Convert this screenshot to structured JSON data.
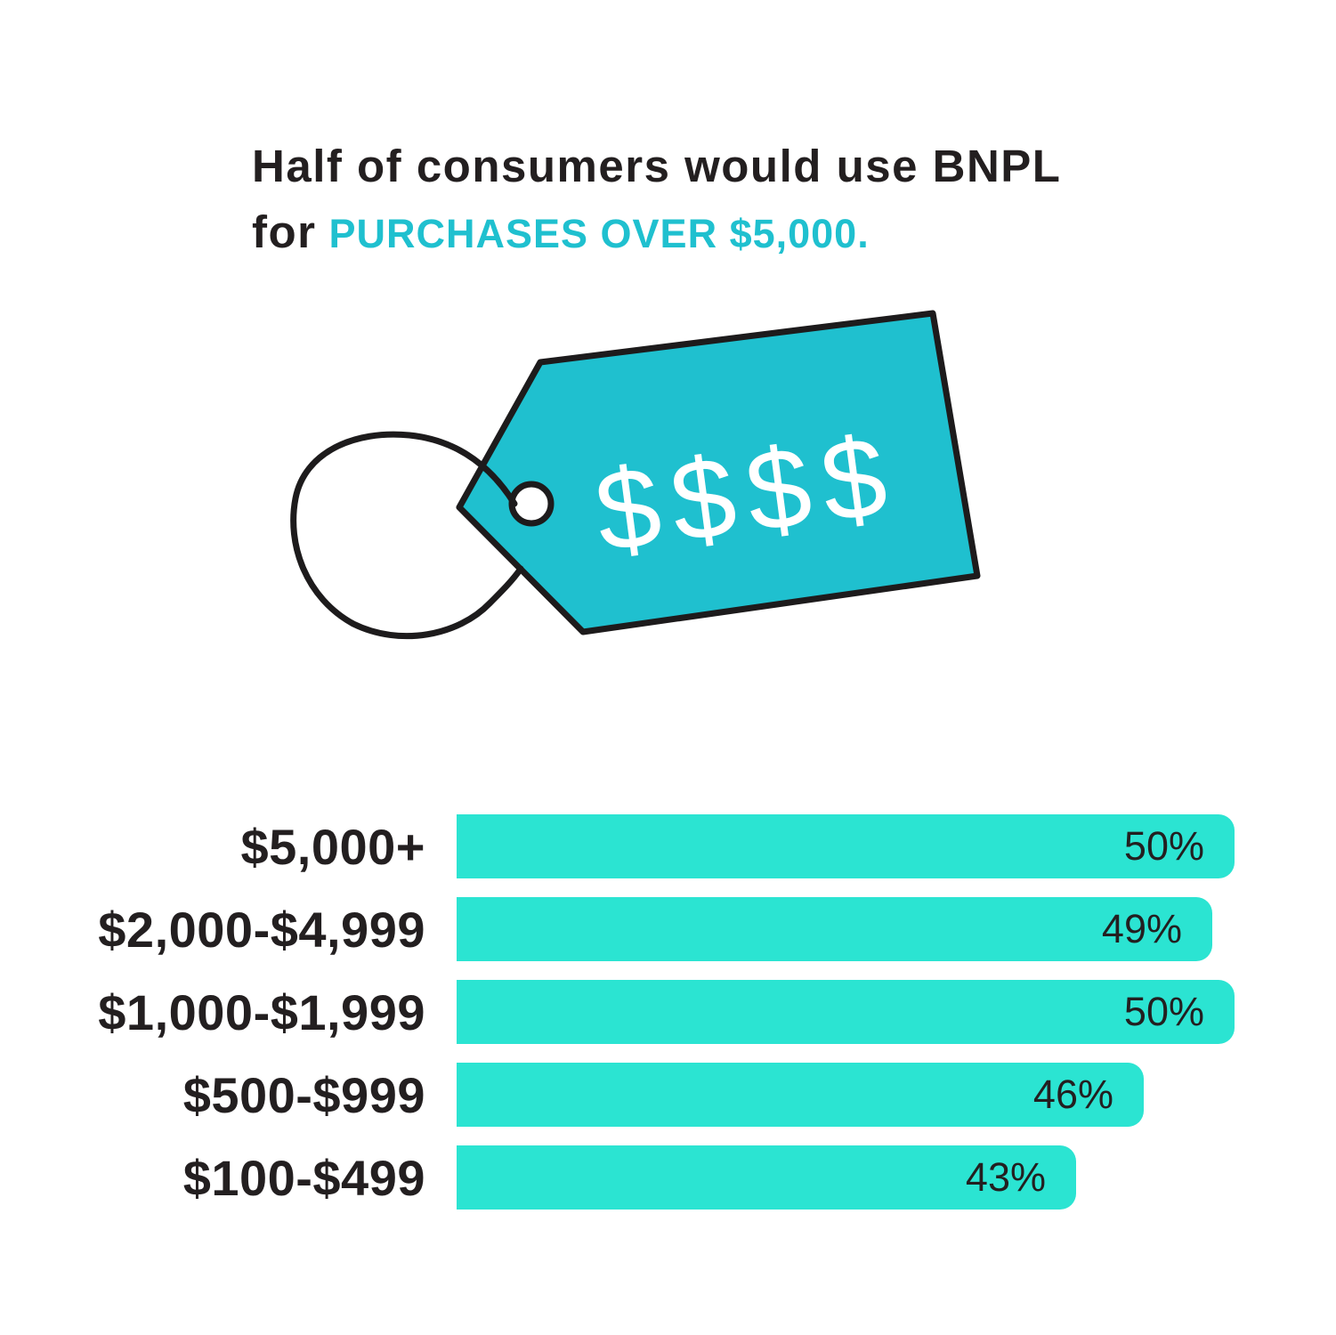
{
  "page": {
    "background": "#ffffff",
    "text_color": "#231F20",
    "accent_teal": "#1FC0CF",
    "bar_teal": "#2BE4D2"
  },
  "title": {
    "line1": "Half of consumers would use BNPL",
    "line2_prefix": "for",
    "line2_highlight": "PURCHASES OVER $5,000.",
    "text_color": "#231F20",
    "highlight_color": "#1FC0CF"
  },
  "illustration": {
    "type": "price-tag",
    "tag_text": "$$$$",
    "tag_fill": "#1FC0CF",
    "outline_color": "#1D1B1C",
    "dollar_color": "#FFFFFF"
  },
  "chart_data": {
    "type": "bar",
    "orientation": "horizontal",
    "title": "",
    "categories": [
      "$5,000+",
      "$2,000-$4,999",
      "$1,000-$1,999",
      "$500-$999",
      "$100-$499"
    ],
    "values": [
      50,
      49,
      50,
      46,
      43
    ],
    "value_labels": [
      "50%",
      "49%",
      "50%",
      "46%",
      "43%"
    ],
    "unit": "%",
    "xlim": [
      0,
      50
    ],
    "grid": false,
    "legend": false,
    "bar_color": "#2BE4D2",
    "category_label_color": "#231F20",
    "value_label_color": "#231F20",
    "value_label_position": "inside-right"
  }
}
